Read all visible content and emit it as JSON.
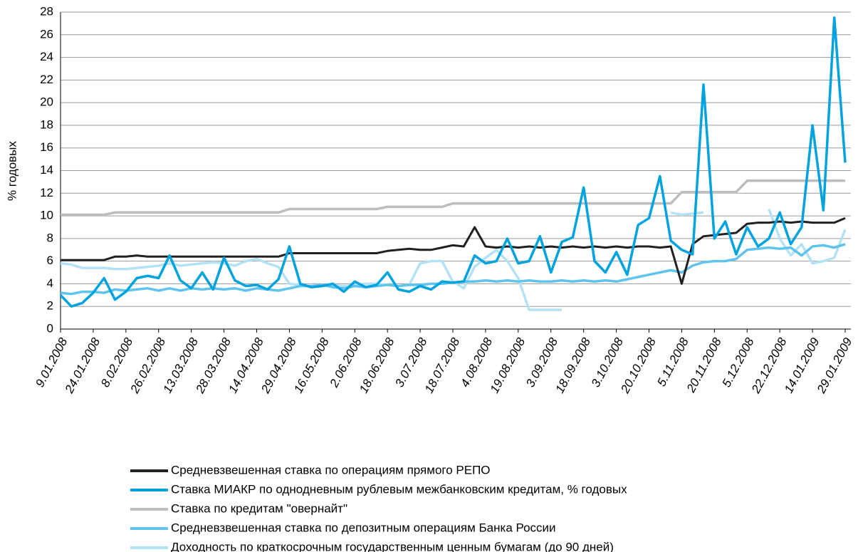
{
  "chart_data": {
    "type": "line",
    "ylabel": "% годовых",
    "categories": [
      "9.01.2008",
      null,
      null,
      "24.01.2008",
      null,
      null,
      "8.02.2008",
      null,
      null,
      "26.02.2008",
      null,
      null,
      "13.03.2008",
      null,
      null,
      "28.03.2008",
      null,
      null,
      "14.04.2008",
      null,
      null,
      "29.04.2008",
      null,
      null,
      "16.05.2008",
      null,
      null,
      "2.06.2008",
      null,
      null,
      "18.06.2008",
      null,
      null,
      "3.07.2008",
      null,
      null,
      "18.07.2008",
      null,
      null,
      "4.08.2008",
      null,
      null,
      "19.08.2008",
      null,
      null,
      "3.09.2008",
      null,
      null,
      "18.09.2008",
      null,
      null,
      "3.10.2008",
      null,
      null,
      "20.10.2008",
      null,
      null,
      "5.11.2008",
      null,
      null,
      "20.11.2008",
      null,
      null,
      "5.12.2008",
      null,
      null,
      "22.12.2008",
      null,
      null,
      "14.01.2009",
      null,
      null,
      "29.01.2009"
    ],
    "series": [
      {
        "name": "Средневзвешенная ставка по операциям прямого РЕПО",
        "color": "#231f20",
        "values": [
          6.1,
          6.1,
          6.1,
          6.1,
          6.1,
          6.4,
          6.4,
          6.5,
          6.4,
          6.4,
          6.4,
          6.4,
          6.4,
          6.4,
          6.4,
          6.4,
          6.4,
          6.4,
          6.4,
          6.4,
          6.4,
          6.7,
          6.7,
          6.7,
          6.7,
          6.7,
          6.7,
          6.7,
          6.7,
          6.7,
          6.9,
          7.0,
          7.1,
          7.0,
          7.0,
          7.2,
          7.4,
          7.3,
          9.0,
          7.3,
          7.2,
          7.3,
          7.2,
          7.3,
          7.2,
          7.3,
          7.2,
          7.3,
          7.2,
          7.3,
          7.2,
          7.3,
          7.2,
          7.3,
          7.3,
          7.2,
          7.3,
          4.0,
          7.5,
          8.2,
          8.3,
          8.4,
          8.5,
          9.3,
          9.4,
          9.4,
          9.5,
          9.4,
          9.5,
          9.4,
          9.4,
          9.4,
          9.8
        ]
      },
      {
        "name": "Ставка МИАКР по однодневным рублевым межбанковским кредитам, % годовых",
        "color": "#00a3dd",
        "values": [
          3.0,
          2.0,
          2.3,
          3.2,
          4.5,
          2.6,
          3.3,
          4.5,
          4.7,
          4.5,
          6.5,
          4.3,
          3.6,
          5.0,
          3.5,
          6.3,
          4.3,
          3.8,
          3.9,
          3.5,
          4.4,
          7.3,
          4.0,
          3.7,
          3.8,
          4.0,
          3.3,
          4.2,
          3.7,
          3.9,
          5.0,
          3.5,
          3.3,
          3.8,
          3.5,
          4.2,
          4.1,
          4.2,
          6.5,
          5.8,
          6.0,
          8.0,
          5.8,
          6.0,
          8.2,
          5.0,
          7.7,
          8.1,
          12.5,
          6.0,
          5.0,
          6.8,
          4.8,
          9.2,
          9.8,
          13.5,
          7.8,
          7.0,
          6.6,
          21.6,
          8.0,
          9.5,
          6.6,
          9.0,
          7.3,
          8.0,
          10.3,
          7.5,
          9.0,
          18.0,
          10.5,
          27.5,
          14.7
        ]
      },
      {
        "name": "Ставка по кредитам \"овернайт\"",
        "color": "#bdbdbd",
        "values": [
          10.1,
          10.1,
          10.1,
          10.1,
          10.1,
          10.3,
          10.3,
          10.3,
          10.3,
          10.3,
          10.3,
          10.3,
          10.3,
          10.3,
          10.3,
          10.3,
          10.3,
          10.3,
          10.3,
          10.3,
          10.3,
          10.6,
          10.6,
          10.6,
          10.6,
          10.6,
          10.6,
          10.6,
          10.6,
          10.6,
          10.8,
          10.8,
          10.8,
          10.8,
          10.8,
          10.8,
          11.1,
          11.1,
          11.1,
          11.1,
          11.1,
          11.1,
          11.1,
          11.1,
          11.1,
          11.1,
          11.1,
          11.1,
          11.1,
          11.1,
          11.1,
          11.1,
          11.1,
          11.1,
          11.1,
          11.1,
          11.1,
          12.1,
          12.1,
          12.1,
          12.1,
          12.1,
          12.1,
          13.1,
          13.1,
          13.1,
          13.1,
          13.1,
          13.1,
          13.1,
          13.1,
          13.1,
          13.1
        ]
      },
      {
        "name": "Средневзвешенная ставка по депозитным операциям Банка России",
        "color": "#5ec4ec",
        "values": [
          3.2,
          3.1,
          3.3,
          3.3,
          3.2,
          3.5,
          3.4,
          3.5,
          3.6,
          3.4,
          3.6,
          3.4,
          3.6,
          3.5,
          3.6,
          3.5,
          3.6,
          3.4,
          3.6,
          3.5,
          3.4,
          3.6,
          3.8,
          3.8,
          3.9,
          3.7,
          3.6,
          3.8,
          3.7,
          3.8,
          3.9,
          3.8,
          3.9,
          3.9,
          4.0,
          4.0,
          4.1,
          4.2,
          4.2,
          4.3,
          4.2,
          4.3,
          4.2,
          4.3,
          4.2,
          4.2,
          4.3,
          4.2,
          4.3,
          4.2,
          4.3,
          4.2,
          4.4,
          4.6,
          4.8,
          5.0,
          5.2,
          5.0,
          5.6,
          5.9,
          6.0,
          6.0,
          6.2,
          7.0,
          7.1,
          7.2,
          7.1,
          7.2,
          6.5,
          7.3,
          7.4,
          7.2,
          7.5
        ]
      },
      {
        "name": "Доходность по краткосрочным государственным ценным бумагам (до 90 дней)",
        "color": "#b3e2f5",
        "values": [
          5.8,
          5.7,
          5.4,
          5.4,
          5.4,
          5.3,
          5.3,
          5.4,
          5.5,
          5.6,
          5.8,
          5.6,
          5.7,
          5.8,
          5.9,
          5.8,
          5.6,
          6.0,
          6.2,
          5.8,
          5.5,
          4.0,
          3.9,
          3.8,
          3.8,
          3.9,
          3.8,
          3.9,
          4.0,
          4.0,
          3.9,
          3.8,
          3.9,
          5.8,
          6.0,
          6.0,
          4.2,
          3.6,
          5.5,
          6.3,
          7.0,
          6.0,
          4.5,
          1.7,
          1.7,
          1.7,
          1.7,
          null,
          null,
          null,
          null,
          null,
          null,
          null,
          null,
          null,
          10.3,
          10.1,
          10.2,
          10.3,
          null,
          null,
          null,
          null,
          null,
          10.6,
          8.0,
          6.5,
          7.5,
          5.8,
          6.0,
          6.3,
          8.8
        ]
      }
    ],
    "ylim": [
      0,
      28
    ],
    "yticks": [
      0,
      2,
      4,
      6,
      8,
      10,
      12,
      14,
      16,
      18,
      20,
      22,
      24,
      26,
      28
    ],
    "grid": true
  }
}
